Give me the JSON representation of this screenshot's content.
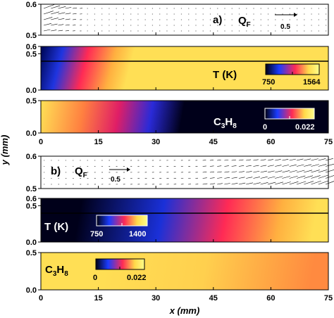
{
  "chart_data": {
    "type": "heatmap",
    "ylabel": "y  (mm)",
    "xlabel": "x  (mm)",
    "xlim": [
      0,
      75
    ],
    "x_ticks": [
      "0",
      "15",
      "30",
      "45",
      "60",
      "75"
    ],
    "vector_scale_label": "0.5",
    "flow_symbol": "Q",
    "flow_subscript": "F",
    "temperature_label": "T (K)",
    "species_label": {
      "base": "C",
      "sub1": "3",
      "mid": "H",
      "sub2": "8"
    },
    "colormap": [
      "#000010",
      "#1a3cff",
      "#ff2a55",
      "#ffd94a",
      "#fffd8a"
    ],
    "rows": [
      {
        "case": "a)",
        "flow": {
          "y_range": [
            0.5,
            0.6
          ],
          "y_ticks": [
            "0.5",
            "0.6"
          ],
          "description": "velocity vectors, strong near inlet"
        },
        "temperature": {
          "y_range": [
            0.0,
            0.6
          ],
          "y_ticks": [
            "0.0",
            "0.5",
            "0.6"
          ],
          "colorbar_min": "750",
          "colorbar_max": "1564",
          "min_value": 750,
          "max_value": 1564,
          "wall_y": 0.5
        },
        "species": {
          "y_range": [
            0.0,
            0.5
          ],
          "y_ticks": [
            "0.0",
            "0.5"
          ],
          "colorbar_min": "0",
          "colorbar_max": "0.022",
          "min_value": 0,
          "max_value": 0.022
        }
      },
      {
        "case": "b)",
        "flow": {
          "y_range": [
            0.5,
            0.6
          ],
          "y_ticks": [
            "0.5",
            "0.6"
          ],
          "description": "velocity vectors, strong at x 45-75"
        },
        "temperature": {
          "y_range": [
            0.0,
            0.6
          ],
          "y_ticks": [
            "0.0",
            "0.5",
            "0.6"
          ],
          "colorbar_min": "750",
          "colorbar_max": "1400",
          "min_value": 750,
          "max_value": 1400,
          "wall_y": 0.5
        },
        "species": {
          "y_range": [
            0.0,
            0.5
          ],
          "y_ticks": [
            "0.0",
            "0.5"
          ],
          "colorbar_min": "0",
          "colorbar_max": "0.022",
          "min_value": 0,
          "max_value": 0.022
        }
      }
    ]
  }
}
